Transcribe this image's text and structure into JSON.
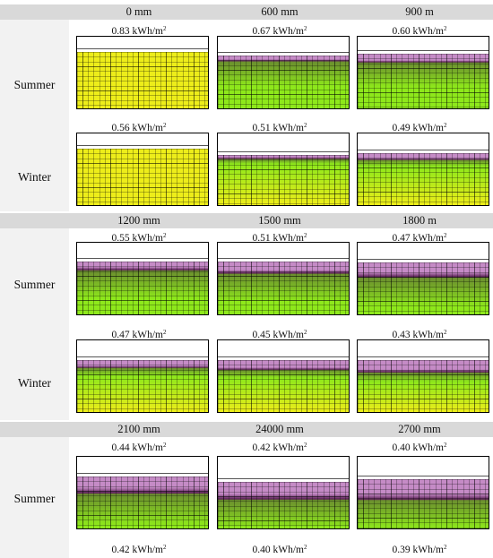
{
  "groups": [
    {
      "columns": [
        "0 mm",
        "600 mm",
        "900 m"
      ],
      "rows": [
        {
          "label": "Summer",
          "values": [
            {
              "num": "0.83",
              "unit": "kWh/m",
              "exp": "2"
            },
            {
              "num": "0.67",
              "unit": "kWh/m",
              "exp": "2"
            },
            {
              "num": "0.60",
              "unit": "kWh/m",
              "exp": "2"
            }
          ],
          "profiles": [
            {
              "white": 0.22,
              "purple": 0.0,
              "dark": 0.0,
              "green": 0.0,
              "scheme": "yellow"
            },
            {
              "white": 0.26,
              "purple": 0.05,
              "dark": 0.03,
              "green": 0.35,
              "scheme": "green"
            },
            {
              "white": 0.24,
              "purple": 0.09,
              "dark": 0.03,
              "green": 0.35,
              "scheme": "green"
            }
          ]
        },
        {
          "label": "Winter",
          "values": [
            {
              "num": "0.56",
              "unit": "kWh/m",
              "exp": "2"
            },
            {
              "num": "0.51",
              "unit": "kWh/m",
              "exp": "2"
            },
            {
              "num": "0.49",
              "unit": "kWh/m",
              "exp": "2"
            }
          ],
          "profiles": [
            {
              "white": 0.22,
              "purple": 0.0,
              "dark": 0.0,
              "green": 0.0,
              "scheme": "yellow"
            },
            {
              "white": 0.31,
              "purple": 0.02,
              "dark": 0.02,
              "green": 0.08,
              "scheme": "yellow"
            },
            {
              "white": 0.28,
              "purple": 0.06,
              "dark": 0.02,
              "green": 0.1,
              "scheme": "yellow"
            }
          ]
        }
      ]
    },
    {
      "columns": [
        "1200 mm",
        "1500 mm",
        "1800 m"
      ],
      "rows": [
        {
          "label": "Summer",
          "values": [
            {
              "num": "0.55",
              "unit": "kWh/m",
              "exp": "2"
            },
            {
              "num": "0.51",
              "unit": "kWh/m",
              "exp": "2"
            },
            {
              "num": "0.47",
              "unit": "kWh/m",
              "exp": "2"
            }
          ],
          "profiles": [
            {
              "white": 0.26,
              "purple": 0.08,
              "dark": 0.04,
              "green": 0.4,
              "scheme": "green"
            },
            {
              "white": 0.26,
              "purple": 0.11,
              "dark": 0.05,
              "green": 0.4,
              "scheme": "green"
            },
            {
              "white": 0.28,
              "purple": 0.14,
              "dark": 0.06,
              "green": 0.42,
              "scheme": "green"
            }
          ]
        },
        {
          "label": "Winter",
          "values": [
            {
              "num": "0.47",
              "unit": "kWh/m",
              "exp": "2"
            },
            {
              "num": "0.45",
              "unit": "kWh/m",
              "exp": "2"
            },
            {
              "num": "0.43",
              "unit": "kWh/m",
              "exp": "2"
            }
          ],
          "profiles": [
            {
              "white": 0.28,
              "purple": 0.07,
              "dark": 0.03,
              "green": 0.12,
              "scheme": "yellow"
            },
            {
              "white": 0.28,
              "purple": 0.1,
              "dark": 0.03,
              "green": 0.12,
              "scheme": "yellow"
            },
            {
              "white": 0.28,
              "purple": 0.13,
              "dark": 0.04,
              "green": 0.14,
              "scheme": "yellow"
            }
          ]
        }
      ]
    },
    {
      "columns": [
        "2100 mm",
        "24000 mm",
        "2700 mm"
      ],
      "rows": [
        {
          "label": "Summer",
          "values": [
            {
              "num": "0.44",
              "unit": "kWh/m",
              "exp": "2"
            },
            {
              "num": "0.42",
              "unit": "kWh/m",
              "exp": "2"
            },
            {
              "num": "0.40",
              "unit": "kWh/m",
              "exp": "2"
            }
          ],
          "bottom_values": [
            {
              "num": "0.42",
              "unit": "kWh/m",
              "exp": "2"
            },
            {
              "num": "0.40",
              "unit": "kWh/m",
              "exp": "2"
            },
            {
              "num": "0.39",
              "unit": "kWh/m",
              "exp": "2"
            }
          ],
          "profiles": [
            {
              "white": 0.28,
              "purple": 0.15,
              "dark": 0.07,
              "green": 0.45,
              "scheme": "green"
            },
            {
              "white": 0.35,
              "purple": 0.16,
              "dark": 0.07,
              "green": 0.45,
              "scheme": "green"
            },
            {
              "white": 0.32,
              "purple": 0.2,
              "dark": 0.08,
              "green": 0.45,
              "scheme": "green"
            }
          ]
        }
      ]
    }
  ],
  "colors": {
    "header_bg": "#d9d9d9",
    "label_col_bg": "#f2f2f2",
    "purple": "#c58bc6",
    "dark_purple": "#5a1f55",
    "green_top": "#6b8f2f",
    "green": "#8ee81b",
    "yellow": "#eded1a"
  }
}
